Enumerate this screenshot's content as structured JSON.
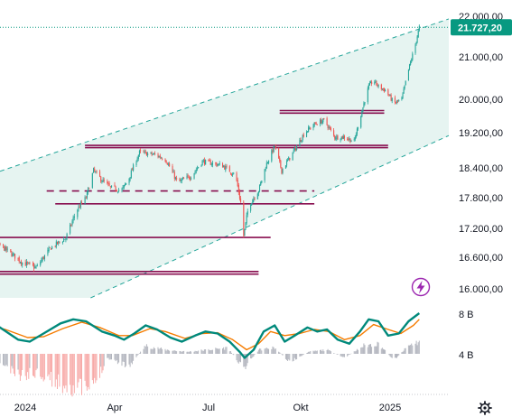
{
  "colors": {
    "channel_fill": "#e6f4f1",
    "channel_line": "#26a69a",
    "up_candle": "#26a69a",
    "down_candle": "#ef5350",
    "level_line": "#880e4f",
    "last_price_line": "#089981",
    "last_price_label_bg": "#089981",
    "osc_teal": "#00897b",
    "osc_orange": "#f57c00",
    "hist_gray": "#b2b5be",
    "hist_red": "#f7a9a7",
    "icon_purple": "#9c27b0"
  },
  "chart_data": {
    "type": "candlestick",
    "title": "",
    "price_axis": {
      "ticks": [
        "22.000,00",
        "21.000,00",
        "20.000,00",
        "19.200,00",
        "18.400,00",
        "17.800,00",
        "17.200,00",
        "16.600,00",
        "16.000,00"
      ],
      "ylim": [
        15880,
        22230
      ]
    },
    "last_price": {
      "label": "21.727,20",
      "value": 21727.2
    },
    "time_axis": {
      "ticks": [
        "2024",
        "Apr",
        "Jul",
        "Okt",
        "2025"
      ],
      "start": "2023-11-20",
      "end": "2025-01-31"
    },
    "channel": {
      "upper": [
        {
          "date": "2023-11-20",
          "value": 18150
        },
        {
          "date": "2025-02-04",
          "value": 22280
        }
      ],
      "lower": [
        {
          "date": "2024-03-15",
          "value": 15880
        },
        {
          "date": "2025-02-04",
          "value": 18870
        }
      ]
    },
    "levels": [
      {
        "value": 19730,
        "start": "2024-09-10",
        "end": "2024-12-26",
        "style": "solid"
      },
      {
        "value": 19670,
        "start": "2024-09-10",
        "end": "2024-12-26",
        "style": "solid"
      },
      {
        "value": 18910,
        "start": "2024-03-04",
        "end": "2024-12-30",
        "style": "solid"
      },
      {
        "value": 18860,
        "start": "2024-03-04",
        "end": "2024-12-30",
        "style": "solid"
      },
      {
        "value": 17935,
        "start": "2024-01-28",
        "end": "2024-10-15",
        "style": "dashed"
      },
      {
        "value": 17680,
        "start": "2024-02-05",
        "end": "2024-10-15",
        "style": "solid"
      },
      {
        "value": 17010,
        "start": "2023-11-20",
        "end": "2024-09-01",
        "style": "solid"
      },
      {
        "value": 16330,
        "start": "2023-11-20",
        "end": "2024-08-20",
        "style": "solid"
      },
      {
        "value": 16280,
        "start": "2023-11-20",
        "end": "2024-08-20",
        "style": "solid"
      }
    ],
    "price_path": [
      {
        "date": "2023-11-20",
        "value": 16580
      },
      {
        "date": "2023-12-05",
        "value": 16800
      },
      {
        "date": "2023-12-15",
        "value": 16850
      },
      {
        "date": "2024-01-05",
        "value": 16500
      },
      {
        "date": "2024-01-18",
        "value": 16400
      },
      {
        "date": "2024-02-01",
        "value": 16800
      },
      {
        "date": "2024-02-15",
        "value": 17000
      },
      {
        "date": "2024-02-25",
        "value": 17550
      },
      {
        "date": "2024-03-05",
        "value": 17800
      },
      {
        "date": "2024-03-12",
        "value": 18350
      },
      {
        "date": "2024-03-20",
        "value": 18150
      },
      {
        "date": "2024-03-28",
        "value": 18000
      },
      {
        "date": "2024-04-08",
        "value": 17950
      },
      {
        "date": "2024-04-15",
        "value": 18200
      },
      {
        "date": "2024-04-25",
        "value": 18750
      },
      {
        "date": "2024-05-10",
        "value": 18700
      },
      {
        "date": "2024-05-20",
        "value": 18600
      },
      {
        "date": "2024-06-01",
        "value": 18100
      },
      {
        "date": "2024-06-15",
        "value": 18250
      },
      {
        "date": "2024-06-25",
        "value": 18550
      },
      {
        "date": "2024-07-05",
        "value": 18500
      },
      {
        "date": "2024-07-15",
        "value": 18450
      },
      {
        "date": "2024-07-28",
        "value": 18250
      },
      {
        "date": "2024-08-02",
        "value": 17700
      },
      {
        "date": "2024-08-05",
        "value": 17050
      },
      {
        "date": "2024-08-10",
        "value": 17650
      },
      {
        "date": "2024-08-20",
        "value": 17950
      },
      {
        "date": "2024-08-28",
        "value": 18500
      },
      {
        "date": "2024-09-05",
        "value": 18900
      },
      {
        "date": "2024-09-12",
        "value": 18350
      },
      {
        "date": "2024-09-22",
        "value": 18700
      },
      {
        "date": "2024-10-05",
        "value": 19200
      },
      {
        "date": "2024-10-15",
        "value": 19400
      },
      {
        "date": "2024-10-25",
        "value": 19500
      },
      {
        "date": "2024-11-05",
        "value": 19100
      },
      {
        "date": "2024-11-15",
        "value": 19100
      },
      {
        "date": "2024-11-25",
        "value": 19000
      },
      {
        "date": "2024-12-05",
        "value": 19900
      },
      {
        "date": "2024-12-10",
        "value": 20300
      },
      {
        "date": "2024-12-15",
        "value": 20450
      },
      {
        "date": "2024-12-20",
        "value": 20300
      },
      {
        "date": "2024-12-28",
        "value": 20200
      },
      {
        "date": "2025-01-05",
        "value": 19900
      },
      {
        "date": "2025-01-13",
        "value": 20000
      },
      {
        "date": "2025-01-20",
        "value": 20700
      },
      {
        "date": "2025-01-27",
        "value": 21300
      },
      {
        "date": "2025-01-31",
        "value": 21727
      }
    ],
    "oscillator": {
      "axis_ticks": [
        "8 B",
        "4 B"
      ],
      "fast": [
        {
          "date": "2023-11-20",
          "value": 0.6
        },
        {
          "date": "2023-12-01",
          "value": 0.8
        },
        {
          "date": "2023-12-12",
          "value": 0.7
        },
        {
          "date": "2024-01-01",
          "value": 0.35
        },
        {
          "date": "2024-01-12",
          "value": 0.3
        },
        {
          "date": "2024-01-25",
          "value": 0.5
        },
        {
          "date": "2024-02-10",
          "value": 0.75
        },
        {
          "date": "2024-02-22",
          "value": 0.85
        },
        {
          "date": "2024-03-05",
          "value": 0.8
        },
        {
          "date": "2024-03-20",
          "value": 0.55
        },
        {
          "date": "2024-04-01",
          "value": 0.45
        },
        {
          "date": "2024-04-10",
          "value": 0.35
        },
        {
          "date": "2024-04-20",
          "value": 0.5
        },
        {
          "date": "2024-05-01",
          "value": 0.7
        },
        {
          "date": "2024-05-12",
          "value": 0.6
        },
        {
          "date": "2024-05-25",
          "value": 0.4
        },
        {
          "date": "2024-06-05",
          "value": 0.3
        },
        {
          "date": "2024-06-18",
          "value": 0.45
        },
        {
          "date": "2024-06-28",
          "value": 0.55
        },
        {
          "date": "2024-07-10",
          "value": 0.5
        },
        {
          "date": "2024-07-22",
          "value": 0.3
        },
        {
          "date": "2024-08-01",
          "value": 0.05
        },
        {
          "date": "2024-08-06",
          "value": -0.1
        },
        {
          "date": "2024-08-15",
          "value": 0.1
        },
        {
          "date": "2024-08-25",
          "value": 0.55
        },
        {
          "date": "2024-09-05",
          "value": 0.7
        },
        {
          "date": "2024-09-15",
          "value": 0.3
        },
        {
          "date": "2024-09-25",
          "value": 0.45
        },
        {
          "date": "2024-10-08",
          "value": 0.65
        },
        {
          "date": "2024-10-18",
          "value": 0.55
        },
        {
          "date": "2024-10-28",
          "value": 0.6
        },
        {
          "date": "2024-11-08",
          "value": 0.35
        },
        {
          "date": "2024-11-20",
          "value": 0.25
        },
        {
          "date": "2024-12-01",
          "value": 0.55
        },
        {
          "date": "2024-12-10",
          "value": 0.85
        },
        {
          "date": "2024-12-20",
          "value": 0.8
        },
        {
          "date": "2024-12-30",
          "value": 0.45
        },
        {
          "date": "2025-01-10",
          "value": 0.5
        },
        {
          "date": "2025-01-20",
          "value": 0.8
        },
        {
          "date": "2025-01-31",
          "value": 1.0
        }
      ],
      "slow": [
        {
          "date": "2023-11-20",
          "value": 0.5
        },
        {
          "date": "2023-12-05",
          "value": 0.7
        },
        {
          "date": "2023-12-20",
          "value": 0.6
        },
        {
          "date": "2024-01-10",
          "value": 0.4
        },
        {
          "date": "2024-01-25",
          "value": 0.42
        },
        {
          "date": "2024-02-12",
          "value": 0.62
        },
        {
          "date": "2024-03-01",
          "value": 0.78
        },
        {
          "date": "2024-03-18",
          "value": 0.65
        },
        {
          "date": "2024-04-05",
          "value": 0.45
        },
        {
          "date": "2024-04-18",
          "value": 0.45
        },
        {
          "date": "2024-05-05",
          "value": 0.62
        },
        {
          "date": "2024-05-20",
          "value": 0.55
        },
        {
          "date": "2024-06-08",
          "value": 0.38
        },
        {
          "date": "2024-06-25",
          "value": 0.5
        },
        {
          "date": "2024-07-10",
          "value": 0.52
        },
        {
          "date": "2024-07-25",
          "value": 0.35
        },
        {
          "date": "2024-08-08",
          "value": 0.1
        },
        {
          "date": "2024-08-20",
          "value": 0.25
        },
        {
          "date": "2024-09-01",
          "value": 0.55
        },
        {
          "date": "2024-09-15",
          "value": 0.45
        },
        {
          "date": "2024-09-30",
          "value": 0.5
        },
        {
          "date": "2024-10-15",
          "value": 0.6
        },
        {
          "date": "2024-10-30",
          "value": 0.55
        },
        {
          "date": "2024-11-15",
          "value": 0.35
        },
        {
          "date": "2024-12-01",
          "value": 0.45
        },
        {
          "date": "2024-12-15",
          "value": 0.72
        },
        {
          "date": "2024-12-30",
          "value": 0.6
        },
        {
          "date": "2025-01-12",
          "value": 0.5
        },
        {
          "date": "2025-01-25",
          "value": 0.7
        },
        {
          "date": "2025-01-31",
          "value": 0.85
        }
      ],
      "histogram": [
        {
          "date": "2023-11-20",
          "value": 0.2
        },
        {
          "date": "2023-12-10",
          "value": -0.1
        },
        {
          "date": "2024-01-01",
          "value": -0.55
        },
        {
          "date": "2024-01-20",
          "value": -0.45
        },
        {
          "date": "2024-02-10",
          "value": -0.75
        },
        {
          "date": "2024-03-10",
          "value": -0.9
        },
        {
          "date": "2024-03-25",
          "value": -0.1
        },
        {
          "date": "2024-04-15",
          "value": -0.3
        },
        {
          "date": "2024-05-01",
          "value": 0.2
        },
        {
          "date": "2024-05-20",
          "value": 0.1
        },
        {
          "date": "2024-06-10",
          "value": 0.05
        },
        {
          "date": "2024-07-01",
          "value": 0.1
        },
        {
          "date": "2024-07-20",
          "value": 0.15
        },
        {
          "date": "2024-08-05",
          "value": -0.35
        },
        {
          "date": "2024-08-20",
          "value": 0.1
        },
        {
          "date": "2024-09-05",
          "value": 0.15
        },
        {
          "date": "2024-09-20",
          "value": -0.2
        },
        {
          "date": "2024-10-10",
          "value": 0.05
        },
        {
          "date": "2024-10-28",
          "value": 0.1
        },
        {
          "date": "2024-11-15",
          "value": -0.1
        },
        {
          "date": "2024-12-05",
          "value": 0.2
        },
        {
          "date": "2024-12-20",
          "value": 0.25
        },
        {
          "date": "2025-01-05",
          "value": -0.15
        },
        {
          "date": "2025-01-20",
          "value": 0.2
        },
        {
          "date": "2025-01-31",
          "value": 0.3
        }
      ]
    }
  }
}
